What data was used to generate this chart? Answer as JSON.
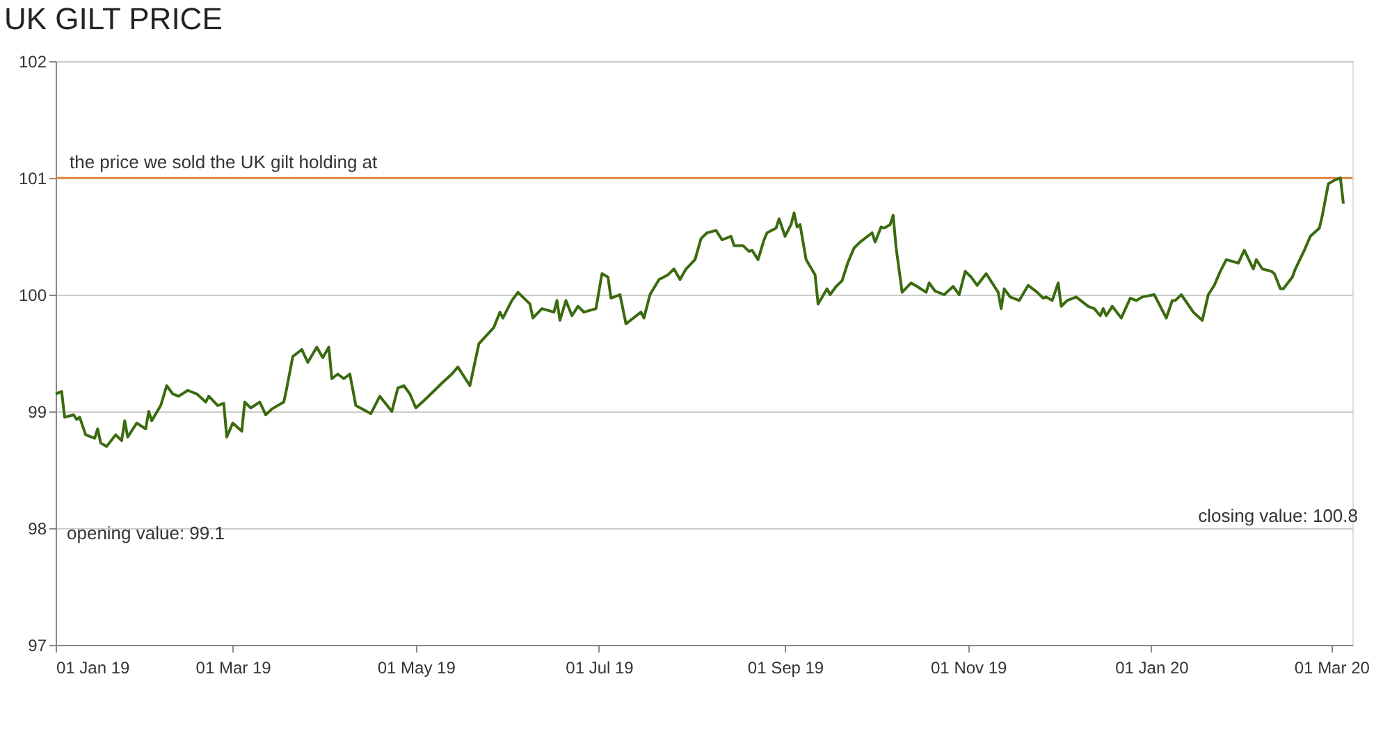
{
  "chart_data": {
    "type": "line",
    "title": "UK GILT PRICE",
    "x": [
      "2019-01-01",
      "2019-01-03",
      "2019-01-04",
      "2019-01-07",
      "2019-01-08",
      "2019-01-09",
      "2019-01-11",
      "2019-01-14",
      "2019-01-15",
      "2019-01-16",
      "2019-01-18",
      "2019-01-21",
      "2019-01-23",
      "2019-01-24",
      "2019-01-25",
      "2019-01-28",
      "2019-01-31",
      "2019-02-01",
      "2019-02-02",
      "2019-02-05",
      "2019-02-07",
      "2019-02-09",
      "2019-02-11",
      "2019-02-14",
      "2019-02-17",
      "2019-02-20",
      "2019-02-21",
      "2019-02-24",
      "2019-02-26",
      "2019-02-27",
      "2019-03-01",
      "2019-03-04",
      "2019-03-05",
      "2019-03-07",
      "2019-03-10",
      "2019-03-12",
      "2019-03-14",
      "2019-03-18",
      "2019-03-19",
      "2019-03-21",
      "2019-03-24",
      "2019-03-26",
      "2019-03-29",
      "2019-03-31",
      "2019-04-02",
      "2019-04-03",
      "2019-04-05",
      "2019-04-07",
      "2019-04-09",
      "2019-04-11",
      "2019-04-16",
      "2019-04-19",
      "2019-04-23",
      "2019-04-25",
      "2019-04-27",
      "2019-04-29",
      "2019-05-01",
      "2019-05-04",
      "2019-05-10",
      "2019-05-13",
      "2019-05-15",
      "2019-05-19",
      "2019-05-22",
      "2019-05-27",
      "2019-05-29",
      "2019-05-30",
      "2019-06-02",
      "2019-06-04",
      "2019-06-08",
      "2019-06-09",
      "2019-06-12",
      "2019-06-16",
      "2019-06-17",
      "2019-06-18",
      "2019-06-20",
      "2019-06-22",
      "2019-06-24",
      "2019-06-26",
      "2019-06-30",
      "2019-07-02",
      "2019-07-04",
      "2019-07-05",
      "2019-07-08",
      "2019-07-10",
      "2019-07-15",
      "2019-07-16",
      "2019-07-18",
      "2019-07-21",
      "2019-07-24",
      "2019-07-26",
      "2019-07-28",
      "2019-07-30",
      "2019-08-02",
      "2019-08-04",
      "2019-08-06",
      "2019-08-09",
      "2019-08-11",
      "2019-08-14",
      "2019-08-15",
      "2019-08-18",
      "2019-08-20",
      "2019-08-21",
      "2019-08-23",
      "2019-08-25",
      "2019-08-26",
      "2019-08-29",
      "2019-08-30",
      "2019-09-01",
      "2019-09-03",
      "2019-09-04",
      "2019-09-05",
      "2019-09-06",
      "2019-09-08",
      "2019-09-11",
      "2019-09-12",
      "2019-09-15",
      "2019-09-16",
      "2019-09-18",
      "2019-09-20",
      "2019-09-22",
      "2019-09-24",
      "2019-09-26",
      "2019-09-30",
      "2019-10-01",
      "2019-10-03",
      "2019-10-04",
      "2019-10-06",
      "2019-10-07",
      "2019-10-08",
      "2019-10-10",
      "2019-10-13",
      "2019-10-15",
      "2019-10-18",
      "2019-10-19",
      "2019-10-21",
      "2019-10-24",
      "2019-10-27",
      "2019-10-29",
      "2019-10-31",
      "2019-11-02",
      "2019-11-04",
      "2019-11-07",
      "2019-11-09",
      "2019-11-11",
      "2019-11-12",
      "2019-11-13",
      "2019-11-15",
      "2019-11-18",
      "2019-11-21",
      "2019-11-24",
      "2019-11-26",
      "2019-11-27",
      "2019-11-29",
      "2019-12-01",
      "2019-12-02",
      "2019-12-04",
      "2019-12-07",
      "2019-12-11",
      "2019-12-13",
      "2019-12-15",
      "2019-12-16",
      "2019-12-17",
      "2019-12-19",
      "2019-12-22",
      "2019-12-25",
      "2019-12-27",
      "2019-12-29",
      "2020-01-02",
      "2020-01-06",
      "2020-01-08",
      "2020-01-09",
      "2020-01-11",
      "2020-01-15",
      "2020-01-18",
      "2020-01-20",
      "2020-01-22",
      "2020-01-24",
      "2020-01-26",
      "2020-01-30",
      "2020-02-01",
      "2020-02-04",
      "2020-02-05",
      "2020-02-07",
      "2020-02-10",
      "2020-02-11",
      "2020-02-13",
      "2020-02-14",
      "2020-02-17",
      "2020-02-18",
      "2020-02-21",
      "2020-02-23",
      "2020-02-26",
      "2020-02-27",
      "2020-02-29",
      "2020-03-02",
      "2020-03-04",
      "2020-03-05"
    ],
    "series": [
      {
        "color": "#3a6b0f",
        "values": [
          99.15,
          99.17,
          98.95,
          98.97,
          98.93,
          98.95,
          98.8,
          98.77,
          98.85,
          98.73,
          98.7,
          98.8,
          98.75,
          98.92,
          98.78,
          98.9,
          98.85,
          99.0,
          98.92,
          99.05,
          99.22,
          99.15,
          99.13,
          99.18,
          99.15,
          99.08,
          99.13,
          99.05,
          99.07,
          98.78,
          98.9,
          98.83,
          99.08,
          99.03,
          99.08,
          98.97,
          99.02,
          99.08,
          99.2,
          99.47,
          99.53,
          99.42,
          99.55,
          99.46,
          99.55,
          99.28,
          99.32,
          99.28,
          99.32,
          99.05,
          98.98,
          99.13,
          99.0,
          99.2,
          99.22,
          99.15,
          99.03,
          99.1,
          99.25,
          99.32,
          99.38,
          99.22,
          99.58,
          99.72,
          99.85,
          99.8,
          99.95,
          100.02,
          99.92,
          99.8,
          99.88,
          99.85,
          99.95,
          99.78,
          99.95,
          99.82,
          99.9,
          99.85,
          99.88,
          100.18,
          100.15,
          99.97,
          100.0,
          99.75,
          99.85,
          99.8,
          100.0,
          100.13,
          100.17,
          100.22,
          100.13,
          100.22,
          100.3,
          100.48,
          100.53,
          100.55,
          100.47,
          100.5,
          100.42,
          100.42,
          100.37,
          100.38,
          100.3,
          100.47,
          100.53,
          100.57,
          100.65,
          100.5,
          100.6,
          100.7,
          100.58,
          100.6,
          100.3,
          100.17,
          99.92,
          100.05,
          100.0,
          100.07,
          100.12,
          100.28,
          100.4,
          100.45,
          100.53,
          100.45,
          100.58,
          100.57,
          100.6,
          100.68,
          100.4,
          100.02,
          100.1,
          100.07,
          100.02,
          100.1,
          100.03,
          100.0,
          100.07,
          100.0,
          100.2,
          100.15,
          100.08,
          100.18,
          100.1,
          100.02,
          99.88,
          100.05,
          99.98,
          99.95,
          100.08,
          100.02,
          99.97,
          99.98,
          99.95,
          100.1,
          99.9,
          99.95,
          99.98,
          99.9,
          99.88,
          99.82,
          99.88,
          99.82,
          99.9,
          99.8,
          99.97,
          99.95,
          99.98,
          100.0,
          99.8,
          99.95,
          99.95,
          100.0,
          99.85,
          99.78,
          100.0,
          100.08,
          100.2,
          100.3,
          100.27,
          100.38,
          100.22,
          100.3,
          100.22,
          100.2,
          100.18,
          100.05,
          100.05,
          100.15,
          100.22,
          100.38,
          100.5,
          100.57,
          100.68,
          100.95,
          100.98,
          101.0,
          100.78
        ]
      }
    ],
    "xlim": [
      "2019-01-01",
      "2020-03-08"
    ],
    "xticks": [
      {
        "value": "2019-01-01",
        "label": "01 Jan 19"
      },
      {
        "value": "2019-03-01",
        "label": "01 Mar 19"
      },
      {
        "value": "2019-05-01",
        "label": "01 May 19"
      },
      {
        "value": "2019-07-01",
        "label": "01 Jul 19"
      },
      {
        "value": "2019-09-01",
        "label": "01 Sep 19"
      },
      {
        "value": "2019-11-01",
        "label": "01 Nov 19"
      },
      {
        "value": "2020-01-01",
        "label": "01 Jan 20"
      },
      {
        "value": "2020-03-01",
        "label": "01 Mar 20"
      }
    ],
    "ylim": [
      97,
      102
    ],
    "yticks": [
      97,
      98,
      99,
      100,
      101,
      102
    ],
    "grid": "y",
    "line_style": "solid",
    "marker": "none",
    "ref_lines": [
      {
        "axis": "y",
        "value": 101,
        "label": "the price we sold the UK gilt holding at",
        "color": "#e8792b"
      }
    ],
    "annotations": [
      "opening value: 99.1",
      "closing value: 100.8"
    ]
  }
}
